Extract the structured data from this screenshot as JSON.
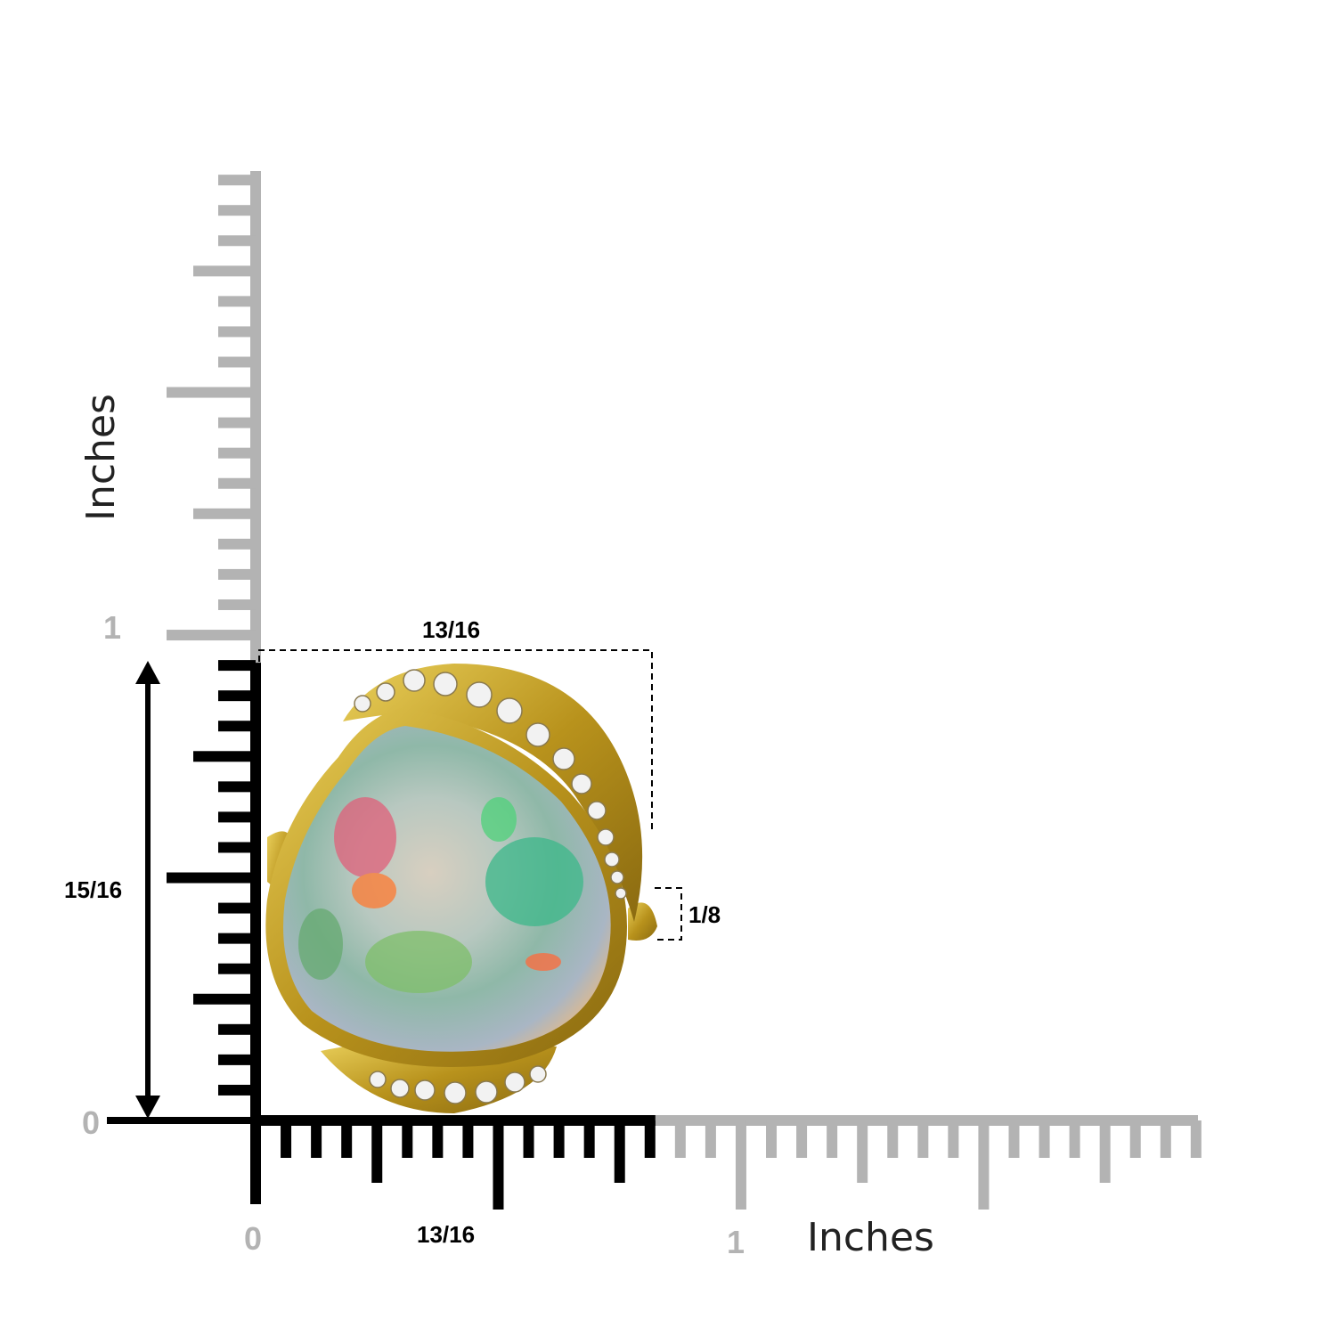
{
  "ruler": {
    "unit_label_vertical": "Inches",
    "unit_label_horizontal": "Inches",
    "vertical_tick_labels": [
      "0",
      "1"
    ],
    "horizontal_tick_labels": [
      "0",
      "1"
    ],
    "highlight_color": "#000000",
    "ruler_color": "#b3b3b3"
  },
  "measurements": {
    "height": "15/16",
    "width_top": "13/16",
    "width_bottom": "13/16",
    "band": "1/8"
  },
  "product": {
    "metal_color": "#c9a62a",
    "stone": "opal",
    "accent_stones": "diamonds"
  }
}
